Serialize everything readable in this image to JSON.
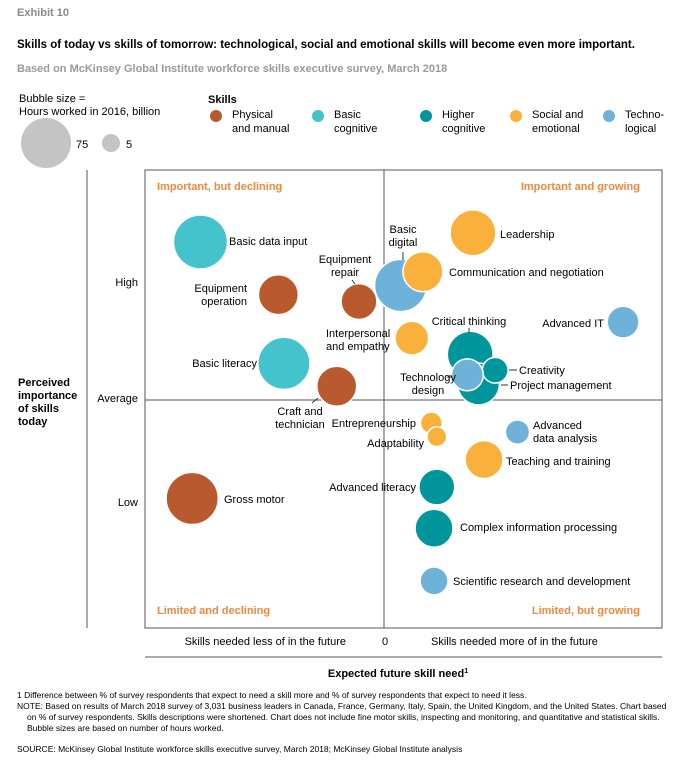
{
  "exhibit": "Exhibit 10",
  "title": "Skills of today vs skills of tomorrow: technological, social and emotional skills will become even more important.",
  "subtitle": "Based on McKinsey Global Institute workforce skills executive survey, March 2018",
  "bubble_size": {
    "line1": "Bubble size =",
    "line2": "Hours worked in 2016, billion",
    "large": "75",
    "small": "5"
  },
  "legend": {
    "title": "Skills",
    "items": [
      {
        "key": "physical",
        "line1": "Physical",
        "line2": "and manual",
        "color": "#b85a2e"
      },
      {
        "key": "basic",
        "line1": "Basic",
        "line2": "cognitive",
        "color": "#45c3cc"
      },
      {
        "key": "higher",
        "line1": "Higher",
        "line2": "cognitive",
        "color": "#00969b"
      },
      {
        "key": "social",
        "line1": "Social and",
        "line2": "emotional",
        "color": "#f9b13c"
      },
      {
        "key": "tech",
        "line1": "Techno-",
        "line2": "logical",
        "color": "#6eb2d9"
      }
    ]
  },
  "chart_data": {
    "type": "scatter",
    "subtype": "bubble-quadrant",
    "xlabel": "Expected future skill need",
    "xlabel_footnote": "1",
    "ylabel": "Perceived importance of skills today",
    "x_tick_labels": {
      "left": "Skills needed less of in the future",
      "center": "0",
      "right": "Skills needed more of in the future"
    },
    "y_tick_labels": {
      "high": "High",
      "average": "Average",
      "low": "Low"
    },
    "quadrants": {
      "top_left": "Important, but declining",
      "top_right": "Important and growing",
      "bottom_left": "Limited and declining",
      "bottom_right": "Limited, but growing"
    },
    "quadrant_label_color": "#f0883e",
    "xlim": [
      -86,
      100
    ],
    "ylim": [
      -100,
      100
    ],
    "size_unit": "Hours worked in 2016, billion",
    "points": [
      {
        "label": "Basic data input",
        "category": "basic",
        "x": -66,
        "y": 69,
        "size": 75
      },
      {
        "label": "Equipment operation",
        "category": "physical",
        "x": -38,
        "y": 46,
        "size": 41
      },
      {
        "label": "Equipment repair",
        "category": "physical",
        "x": -9,
        "y": 43,
        "size": 33
      },
      {
        "label": "Basic digital",
        "category": "tech",
        "x": 6,
        "y": 50,
        "size": 70
      },
      {
        "label": "Leadership",
        "category": "social",
        "x": 32,
        "y": 73,
        "size": 54
      },
      {
        "label": "Communication and negotiation",
        "category": "social",
        "x": 14,
        "y": 56,
        "size": 41
      },
      {
        "label": "Advanced IT",
        "category": "tech",
        "x": 86,
        "y": 34,
        "size": 26
      },
      {
        "label": "Basic literacy",
        "category": "basic",
        "x": -36,
        "y": 16,
        "size": 70
      },
      {
        "label": "Interpersonal and empathy",
        "category": "social",
        "x": 10,
        "y": 27,
        "size": 29
      },
      {
        "label": "Critical thinking",
        "category": "higher",
        "x": 31,
        "y": 20,
        "size": 54
      },
      {
        "label": "Project management",
        "category": "higher",
        "x": 34,
        "y": 7,
        "size": 45
      },
      {
        "label": "Creativity",
        "category": "higher",
        "x": 40,
        "y": 13,
        "size": 17
      },
      {
        "label": "Technology design",
        "category": "tech",
        "x": 30,
        "y": 11,
        "size": 26
      },
      {
        "label": "Craft and technician",
        "category": "physical",
        "x": -17,
        "y": 6,
        "size": 41
      },
      {
        "label": "Entrepreneurship",
        "category": "social",
        "x": 17,
        "y": -10,
        "size": 12
      },
      {
        "label": "Adaptability",
        "category": "social",
        "x": 19,
        "y": -16,
        "size": 10
      },
      {
        "label": "Advanced data analysis",
        "category": "tech",
        "x": 48,
        "y": -14,
        "size": 15
      },
      {
        "label": "Teaching and training",
        "category": "social",
        "x": 36,
        "y": -26,
        "size": 37
      },
      {
        "label": "Gross motor",
        "category": "physical",
        "x": -69,
        "y": -43,
        "size": 70
      },
      {
        "label": "Advanced literacy",
        "category": "higher",
        "x": 19,
        "y": -38,
        "size": 33
      },
      {
        "label": "Complex information processing",
        "category": "higher",
        "x": 18,
        "y": -56,
        "size": 37
      },
      {
        "label": "Scientific research and development",
        "category": "tech",
        "x": 18,
        "y": -79,
        "size": 20
      }
    ]
  },
  "footnotes": {
    "note1": "1  Difference between % of survey respondents that expect to need a skill more and % of survey respondents that expect to need it less.",
    "note": "NOTE: Based on results of March 2018 survey of 3,031 business leaders in Canada, France, Germany, Italy, Spain, the United Kingdom, and the United States. Chart based on % of survey respondents. Skills descriptions were shortened. Chart does not include fine motor skills, inspecting and monitoring, and quantitative and statistical skills. Bubble sizes are based on number of hours worked.",
    "source": "SOURCE:  McKinsey Global Institute workforce skills executive survey, March 2018; McKinsey Global Institute analysis"
  }
}
